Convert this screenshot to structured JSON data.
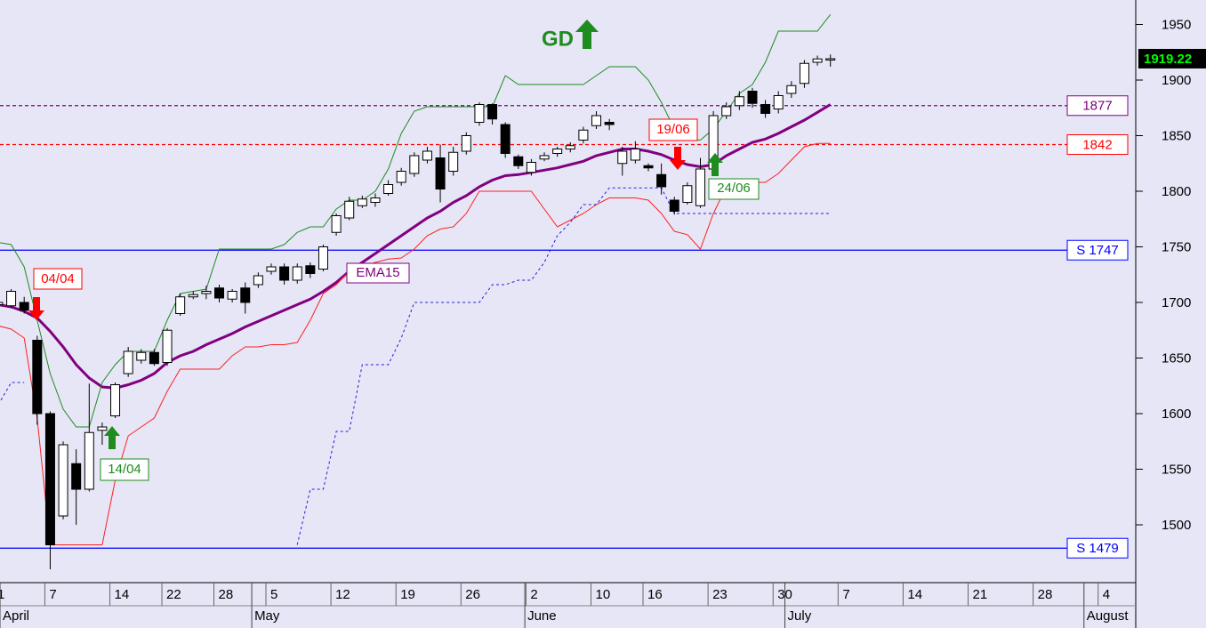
{
  "chart_data": {
    "type": "candlestick",
    "x": [
      0,
      1,
      2,
      3,
      4,
      5,
      6,
      7,
      8,
      9,
      10,
      11,
      12,
      13,
      14,
      15,
      16,
      17,
      18,
      19,
      20,
      21,
      22,
      23,
      24,
      25,
      26,
      27,
      28,
      29,
      30,
      31,
      32,
      33,
      34,
      35,
      36,
      37,
      38,
      39,
      40,
      41,
      42,
      43,
      44,
      45,
      46,
      47,
      48,
      49,
      50,
      51,
      52,
      53,
      54,
      55,
      56,
      57,
      58,
      59,
      60,
      61,
      62,
      63,
      64
    ],
    "open": [
      1698,
      1697,
      1700,
      1666,
      1600,
      1508,
      1555,
      1532,
      1585,
      1598,
      1636,
      1648,
      1655,
      1646,
      1690,
      1705,
      1708,
      1713,
      1703,
      1713,
      1716,
      1728,
      1732,
      1720,
      1733,
      1730,
      1763,
      1776,
      1787,
      1790,
      1798,
      1808,
      1816,
      1828,
      1830,
      1818,
      1836,
      1862,
      1878,
      1860,
      1831,
      1817,
      1829,
      1834,
      1838,
      1846,
      1859,
      1862,
      1825,
      1828,
      1823,
      1815,
      1792,
      1790,
      1787,
      1820,
      1868,
      1877,
      1890,
      1878,
      1874,
      1888,
      1897,
      1916,
      1918
    ],
    "high": [
      1703,
      1712,
      1705,
      1670,
      1602,
      1575,
      1568,
      1627,
      1592,
      1628,
      1660,
      1658,
      1658,
      1677,
      1708,
      1710,
      1715,
      1716,
      1712,
      1718,
      1727,
      1735,
      1735,
      1735,
      1736,
      1752,
      1780,
      1795,
      1796,
      1798,
      1810,
      1821,
      1835,
      1840,
      1842,
      1840,
      1853,
      1880,
      1879,
      1862,
      1833,
      1829,
      1835,
      1840,
      1844,
      1858,
      1872,
      1865,
      1840,
      1845,
      1825,
      1825,
      1795,
      1808,
      1830,
      1872,
      1880,
      1890,
      1893,
      1882,
      1890,
      1899,
      1918,
      1922,
      1923
    ],
    "low": [
      1695,
      1695,
      1690,
      1590,
      1460,
      1505,
      1500,
      1530,
      1572,
      1596,
      1633,
      1645,
      1643,
      1643,
      1688,
      1703,
      1703,
      1700,
      1700,
      1690,
      1713,
      1725,
      1716,
      1717,
      1722,
      1728,
      1760,
      1774,
      1785,
      1786,
      1796,
      1805,
      1813,
      1825,
      1790,
      1814,
      1833,
      1859,
      1860,
      1830,
      1820,
      1814,
      1827,
      1831,
      1835,
      1843,
      1856,
      1855,
      1814,
      1825,
      1818,
      1797,
      1779,
      1788,
      1785,
      1818,
      1865,
      1873,
      1875,
      1866,
      1870,
      1884,
      1893,
      1913,
      1912
    ],
    "close": [
      1700,
      1710,
      1693,
      1600,
      1482,
      1572,
      1532,
      1583,
      1588,
      1626,
      1656,
      1655,
      1645,
      1675,
      1705,
      1707,
      1710,
      1704,
      1710,
      1700,
      1724,
      1732,
      1720,
      1732,
      1726,
      1750,
      1778,
      1791,
      1793,
      1794,
      1806,
      1818,
      1832,
      1836,
      1802,
      1835,
      1850,
      1878,
      1865,
      1834,
      1823,
      1826,
      1832,
      1838,
      1841,
      1855,
      1868,
      1860,
      1836,
      1838,
      1821,
      1804,
      1782,
      1805,
      1820,
      1868,
      1876,
      1885,
      1879,
      1870,
      1886,
      1895,
      1915,
      1919,
      1919.22
    ],
    "up_color": "#ffffff",
    "down_color": "#000000",
    "lines": [
      {
        "name": "EMA15",
        "color": "#800080",
        "width": 3,
        "dash": false,
        "values": [
          1698,
          1696,
          1692,
          1686,
          1674,
          1660,
          1644,
          1632,
          1624,
          1623,
          1626,
          1630,
          1636,
          1646,
          1652,
          1656,
          1662,
          1667,
          1672,
          1678,
          1683,
          1688,
          1693,
          1698,
          1703,
          1710,
          1718,
          1728,
          1736,
          1744,
          1752,
          1760,
          1768,
          1776,
          1782,
          1790,
          1796,
          1804,
          1810,
          1814,
          1815,
          1817,
          1819,
          1821,
          1824,
          1827,
          1832,
          1835,
          1838,
          1838,
          1836,
          1833,
          1828,
          1824,
          1822,
          1824,
          1832,
          1838,
          1844,
          1847,
          1852,
          1858,
          1864,
          1871,
          1878
        ]
      },
      {
        "color": "#1e8c1e",
        "width": 1,
        "dash": false,
        "values": [
          1754,
          1752,
          1732,
          1684,
          1636,
          1604,
          1588,
          1588,
          1628,
          1644,
          1656,
          1656,
          1656,
          1684,
          1708,
          1710,
          1712,
          1748,
          1748,
          1748,
          1748,
          1748,
          1752,
          1763,
          1768,
          1768,
          1784,
          1792,
          1792,
          1800,
          1820,
          1852,
          1872,
          1876,
          1876,
          1876,
          1876,
          1876,
          1876,
          1904,
          1896,
          1896,
          1896,
          1896,
          1896,
          1896,
          1904,
          1912,
          1912,
          1912,
          1900,
          1880,
          1856,
          1846,
          1846,
          1856,
          1872,
          1888,
          1896,
          1916,
          1944,
          1944,
          1944,
          1944,
          1959
        ]
      },
      {
        "color": "#ff2020",
        "width": 1,
        "dash": false,
        "values": [
          1679,
          1676,
          1668,
          1596,
          1482,
          1482,
          1482,
          1482,
          1482,
          1540,
          1580,
          1588,
          1596,
          1620,
          1640,
          1640,
          1640,
          1640,
          1652,
          1660,
          1660,
          1662,
          1662,
          1664,
          1684,
          1708,
          1716,
          1728,
          1732,
          1736,
          1739,
          1740,
          1748,
          1760,
          1766,
          1768,
          1780,
          1800,
          1800,
          1800,
          1800,
          1800,
          1784,
          1768,
          1774,
          1780,
          1788,
          1794,
          1794,
          1794,
          1792,
          1780,
          1764,
          1761,
          1748,
          1780,
          1804,
          1808,
          1808,
          1808,
          1816,
          1828,
          1840,
          1843,
          1843
        ]
      },
      {
        "color": "#2020e0",
        "width": 1,
        "dash": true,
        "values": [
          1608,
          1628,
          1628,
          null,
          null,
          null,
          null,
          null,
          null,
          null,
          null,
          null,
          null,
          null,
          null,
          null,
          null,
          null,
          null,
          null,
          null,
          null,
          null,
          1482,
          1532,
          1532,
          1584,
          1584,
          1644,
          1644,
          1644,
          1668,
          1700,
          1700,
          1700,
          1700,
          1700,
          1700,
          1716,
          1716,
          1720,
          1720,
          1736,
          1760,
          1772,
          1788,
          1788,
          1803,
          1803,
          1803,
          1803,
          1803,
          1780,
          1780,
          1780,
          1780,
          1780,
          1780,
          1780,
          1780,
          1780,
          1780,
          1780,
          1780,
          1780
        ]
      }
    ],
    "levels": [
      {
        "value": 1877,
        "label": "1877",
        "color": "#800080",
        "dash": true
      },
      {
        "value": 1842,
        "label": "1842",
        "color": "#ff0000",
        "dash": true
      },
      {
        "value": 1747,
        "label": "S 1747",
        "color": "#0000ff",
        "dash": false
      },
      {
        "value": 1479,
        "label": "S 1479",
        "color": "#0000ff",
        "dash": false
      }
    ],
    "last_price": {
      "value": 1919.22,
      "label": "1919.22"
    },
    "annotations": [
      "GD",
      "04/04",
      "14/04",
      "19/06",
      "24/06"
    ],
    "xlim": [
      0.14,
      87.48
    ],
    "ylim": [
      1448,
      1972
    ],
    "yticks": [
      1500,
      1550,
      1600,
      1650,
      1700,
      1750,
      1800,
      1850,
      1900,
      1950
    ],
    "xticks": [
      {
        "value": 0,
        "label": "1"
      },
      {
        "value": 4,
        "label": "7"
      },
      {
        "value": 9,
        "label": "14"
      },
      {
        "value": 13,
        "label": "22"
      },
      {
        "value": 17,
        "label": "28"
      },
      {
        "value": 21,
        "label": "5"
      },
      {
        "value": 26,
        "label": "12"
      },
      {
        "value": 31,
        "label": "19"
      },
      {
        "value": 36,
        "label": "26"
      },
      {
        "value": 41,
        "label": "2"
      },
      {
        "value": 46,
        "label": "10"
      },
      {
        "value": 50,
        "label": "16"
      },
      {
        "value": 55,
        "label": "23"
      },
      {
        "value": 60,
        "label": "30"
      },
      {
        "value": 65,
        "label": "7"
      },
      {
        "value": 70,
        "label": "14"
      },
      {
        "value": 75,
        "label": "21"
      },
      {
        "value": 80,
        "label": "28"
      },
      {
        "value": 85,
        "label": "4"
      }
    ],
    "month_ticks": [
      {
        "value": 0.14,
        "label": "April"
      },
      {
        "value": 19.5,
        "label": "May"
      },
      {
        "value": 40.5,
        "label": "June"
      },
      {
        "value": 60.5,
        "label": "July"
      },
      {
        "value": 83.5,
        "label": "August"
      }
    ]
  }
}
